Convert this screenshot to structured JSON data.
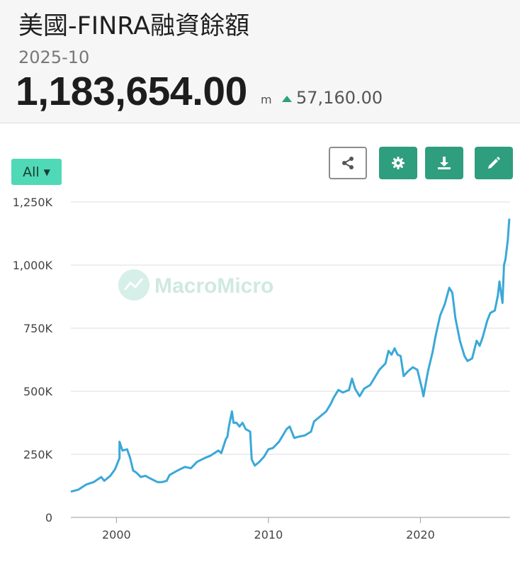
{
  "header": {
    "title": "美國-FINRA融資餘額",
    "date": "2025-10",
    "value": "1,183,654.00",
    "unit": "m",
    "change": "57,160.00"
  },
  "toolbar": {
    "range_label": "All",
    "icons": [
      "share-icon",
      "gear-icon",
      "download-icon",
      "pencil-icon"
    ]
  },
  "watermark": "MacroMicro",
  "colors": {
    "line": "#3aa8d8",
    "accent": "#2e9e7e",
    "range_button": "#4fd9b6",
    "up": "#2e9e7e"
  },
  "chart_data": {
    "type": "line",
    "title": "美國-FINRA融資餘額",
    "xlim": [
      1997.0,
      2025.9
    ],
    "ylim": [
      0,
      1250
    ],
    "yticks": [
      0,
      250,
      500,
      750,
      1000,
      1250
    ],
    "ytick_labels": [
      "0",
      "250K",
      "500K",
      "750K",
      "1,000K",
      "1,250K"
    ],
    "xticks": [
      2000,
      2010,
      2020
    ],
    "xtick_labels": [
      "2000",
      "2010",
      "2020"
    ],
    "grid": true,
    "series": [
      {
        "values": [
          [
            1997.0,
            102
          ],
          [
            1997.5,
            110
          ],
          [
            1998.0,
            130
          ],
          [
            1998.5,
            140
          ],
          [
            1999.0,
            160
          ],
          [
            1999.2,
            145
          ],
          [
            1999.6,
            165
          ],
          [
            1999.9,
            190
          ],
          [
            2000.2,
            235
          ],
          [
            2000.2,
            300
          ],
          [
            2000.4,
            265
          ],
          [
            2000.7,
            270
          ],
          [
            2000.9,
            235
          ],
          [
            2001.1,
            185
          ],
          [
            2001.3,
            178
          ],
          [
            2001.6,
            160
          ],
          [
            2001.9,
            165
          ],
          [
            2002.3,
            152
          ],
          [
            2002.7,
            140
          ],
          [
            2003.0,
            140
          ],
          [
            2003.3,
            145
          ],
          [
            2003.5,
            168
          ],
          [
            2004.0,
            185
          ],
          [
            2004.5,
            200
          ],
          [
            2004.9,
            195
          ],
          [
            2005.3,
            220
          ],
          [
            2005.8,
            235
          ],
          [
            2006.2,
            245
          ],
          [
            2006.7,
            265
          ],
          [
            2006.9,
            255
          ],
          [
            2007.2,
            310
          ],
          [
            2007.3,
            320
          ],
          [
            2007.4,
            360
          ],
          [
            2007.6,
            420
          ],
          [
            2007.7,
            375
          ],
          [
            2007.9,
            375
          ],
          [
            2008.1,
            360
          ],
          [
            2008.3,
            375
          ],
          [
            2008.5,
            350
          ],
          [
            2008.8,
            340
          ],
          [
            2008.9,
            230
          ],
          [
            2009.1,
            205
          ],
          [
            2009.4,
            220
          ],
          [
            2009.7,
            240
          ],
          [
            2010.0,
            270
          ],
          [
            2010.3,
            275
          ],
          [
            2010.7,
            300
          ],
          [
            2011.0,
            330
          ],
          [
            2011.2,
            350
          ],
          [
            2011.4,
            360
          ],
          [
            2011.7,
            315
          ],
          [
            2012.0,
            320
          ],
          [
            2012.4,
            325
          ],
          [
            2012.8,
            340
          ],
          [
            2013.0,
            380
          ],
          [
            2013.4,
            400
          ],
          [
            2013.8,
            420
          ],
          [
            2014.1,
            450
          ],
          [
            2014.3,
            475
          ],
          [
            2014.6,
            505
          ],
          [
            2014.9,
            495
          ],
          [
            2015.3,
            505
          ],
          [
            2015.5,
            550
          ],
          [
            2015.7,
            510
          ],
          [
            2016.0,
            480
          ],
          [
            2016.3,
            510
          ],
          [
            2016.7,
            525
          ],
          [
            2017.0,
            555
          ],
          [
            2017.3,
            585
          ],
          [
            2017.7,
            610
          ],
          [
            2017.9,
            660
          ],
          [
            2018.1,
            645
          ],
          [
            2018.3,
            670
          ],
          [
            2018.5,
            645
          ],
          [
            2018.7,
            640
          ],
          [
            2018.9,
            560
          ],
          [
            2019.2,
            580
          ],
          [
            2019.5,
            595
          ],
          [
            2019.8,
            585
          ],
          [
            2020.1,
            510
          ],
          [
            2020.2,
            480
          ],
          [
            2020.5,
            580
          ],
          [
            2020.8,
            655
          ],
          [
            2021.0,
            720
          ],
          [
            2021.3,
            800
          ],
          [
            2021.6,
            845
          ],
          [
            2021.9,
            910
          ],
          [
            2022.1,
            890
          ],
          [
            2022.3,
            790
          ],
          [
            2022.6,
            700
          ],
          [
            2022.9,
            640
          ],
          [
            2023.1,
            620
          ],
          [
            2023.4,
            630
          ],
          [
            2023.7,
            700
          ],
          [
            2023.9,
            680
          ],
          [
            2024.1,
            715
          ],
          [
            2024.4,
            780
          ],
          [
            2024.6,
            810
          ],
          [
            2024.9,
            820
          ],
          [
            2025.1,
            880
          ],
          [
            2025.2,
            935
          ],
          [
            2025.4,
            850
          ],
          [
            2025.5,
            1000
          ],
          [
            2025.6,
            1025
          ],
          [
            2025.75,
            1100
          ],
          [
            2025.85,
            1184
          ]
        ]
      }
    ]
  }
}
